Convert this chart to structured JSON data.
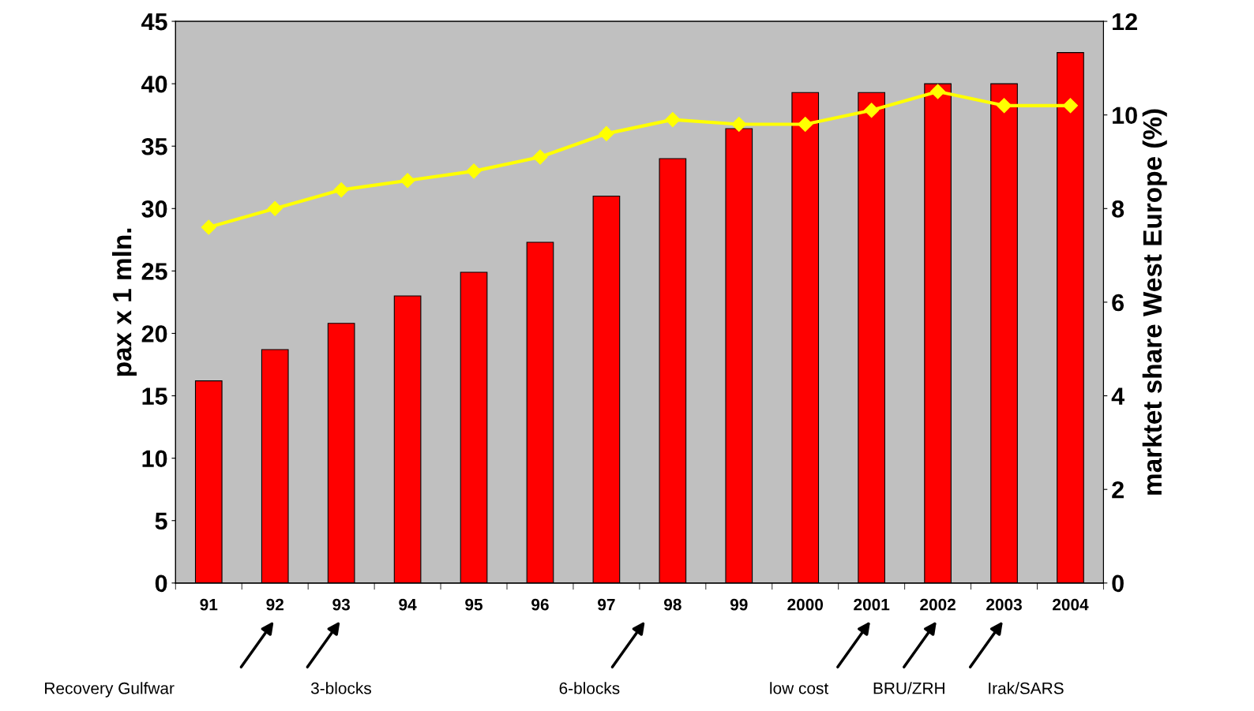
{
  "chart_data": {
    "type": "bar",
    "ylabel": "pax x 1 mln.",
    "y2label": "marktet share West Europe (%)",
    "categories": [
      "91",
      "92",
      "93",
      "94",
      "95",
      "96",
      "97",
      "98",
      "99",
      "2000",
      "2001",
      "2002",
      "2003",
      "2004"
    ],
    "series": [
      {
        "color": "#ff0000",
        "values": [
          16.2,
          18.7,
          20.8,
          23.0,
          24.9,
          27.3,
          31.0,
          34.0,
          36.4,
          39.3,
          39.3,
          40.0,
          40.0,
          42.5
        ]
      },
      {
        "type": "line",
        "axis": "y2",
        "color": "#ffff00",
        "marker": "diamond",
        "values": [
          7.6,
          8.0,
          8.4,
          8.6,
          8.8,
          9.1,
          9.6,
          9.9,
          9.8,
          9.8,
          10.1,
          10.5,
          10.2,
          10.2
        ]
      }
    ],
    "ylim": [
      0,
      45
    ],
    "yticks": [
      0,
      5,
      10,
      15,
      20,
      25,
      30,
      35,
      40,
      45
    ],
    "y2lim": [
      0,
      12
    ],
    "y2ticks": [
      0,
      2,
      4,
      6,
      8,
      10,
      12
    ],
    "grid": false,
    "legend": false,
    "annotations": [
      "Recovery Gulfwar",
      "3-blocks",
      "6-blocks",
      "low cost",
      "BRU/ZRH",
      "Irak/SARS"
    ]
  }
}
